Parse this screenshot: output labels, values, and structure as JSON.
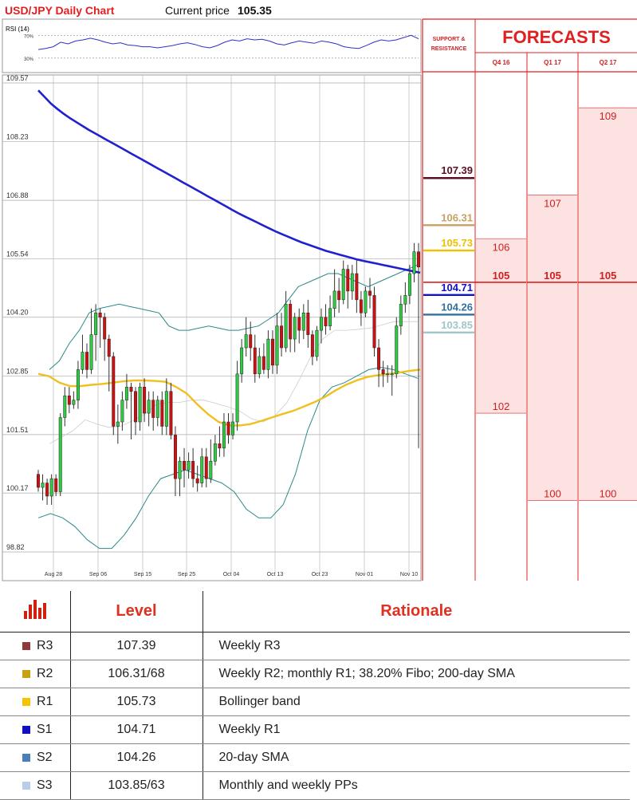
{
  "header": {
    "title": "USD/JPY Daily Chart",
    "price_label": "Current price",
    "price_value": "105.35"
  },
  "rsi_panel": {
    "label": "RSI (14)",
    "upper_label": "70%",
    "lower_label": "30%"
  },
  "support_resistance_title": "SUPPORT & RESISTANCE",
  "forecasts_title": "FORECASTS",
  "colors": {
    "title_red": "#e02020",
    "bull_candle": "#2ecc40",
    "bear_candle": "#d01010",
    "sma200": "#2020d0",
    "sma50": "#f0c020",
    "bollinger": "#2a8a88",
    "sma20": "#cccccc",
    "forecast_fill": "#fde2e2"
  },
  "chart_data": {
    "type": "candlestick",
    "ylim": [
      98.82,
      109.57
    ],
    "y_ticks": [
      "109.57",
      "108.23",
      "106.88",
      "105.54",
      "104.20",
      "102.85",
      "101.51",
      "100.17",
      "98.82"
    ],
    "x_ticks": [
      "Aug 28",
      "Sep 06",
      "Sep 15",
      "Sep 25",
      "Oct 04",
      "Oct 13",
      "Oct 23",
      "Nov 01",
      "Nov 10"
    ],
    "candles": [
      [
        100.6,
        100.3,
        100.7,
        100.2
      ],
      [
        100.3,
        100.4,
        100.6,
        100.0
      ],
      [
        100.4,
        100.1,
        100.5,
        99.9
      ],
      [
        100.1,
        100.5,
        100.6,
        99.9
      ],
      [
        100.5,
        100.2,
        100.6,
        100.1
      ],
      [
        100.2,
        101.9,
        102.0,
        100.1
      ],
      [
        101.9,
        102.4,
        102.6,
        101.7
      ],
      [
        102.4,
        102.2,
        102.6,
        102.0
      ],
      [
        102.2,
        102.3,
        102.5,
        102.1
      ],
      [
        102.3,
        103.0,
        103.2,
        102.1
      ],
      [
        103.0,
        103.4,
        103.8,
        102.9
      ],
      [
        103.4,
        103.0,
        103.6,
        102.8
      ],
      [
        103.0,
        103.8,
        104.4,
        102.9
      ],
      [
        103.8,
        104.3,
        104.5,
        103.2
      ],
      [
        104.3,
        104.2,
        104.4,
        103.5
      ],
      [
        104.2,
        103.7,
        104.3,
        103.2
      ],
      [
        103.7,
        103.3,
        103.8,
        102.5
      ],
      [
        103.3,
        101.7,
        103.4,
        101.5
      ],
      [
        101.7,
        101.8,
        102.2,
        101.3
      ],
      [
        101.8,
        102.3,
        102.5,
        101.6
      ],
      [
        102.3,
        102.6,
        102.9,
        102.1
      ],
      [
        102.6,
        102.5,
        102.7,
        101.4
      ],
      [
        102.5,
        101.8,
        102.6,
        101.5
      ],
      [
        101.8,
        102.6,
        102.7,
        101.6
      ],
      [
        102.6,
        102.0,
        102.8,
        101.8
      ],
      [
        102.0,
        102.3,
        102.5,
        101.7
      ],
      [
        102.3,
        101.9,
        102.5,
        101.6
      ],
      [
        101.9,
        102.3,
        102.4,
        101.7
      ],
      [
        102.3,
        101.7,
        102.5,
        101.5
      ],
      [
        101.7,
        102.5,
        102.8,
        101.5
      ],
      [
        102.5,
        101.5,
        102.7,
        101.4
      ],
      [
        101.5,
        100.5,
        101.7,
        100.1
      ],
      [
        100.5,
        100.9,
        101.0,
        100.1
      ],
      [
        100.9,
        100.7,
        101.2,
        100.3
      ],
      [
        100.7,
        100.9,
        101.1,
        100.5
      ],
      [
        100.9,
        100.5,
        101.2,
        100.3
      ],
      [
        100.5,
        100.4,
        100.8,
        100.2
      ],
      [
        100.4,
        101.0,
        101.2,
        100.3
      ],
      [
        101.0,
        100.5,
        101.2,
        100.3
      ],
      [
        100.5,
        100.9,
        101.4,
        100.4
      ],
      [
        100.9,
        101.3,
        101.5,
        100.8
      ],
      [
        101.3,
        101.2,
        101.7,
        101.0
      ],
      [
        101.2,
        101.8,
        102.0,
        101.0
      ],
      [
        101.8,
        101.5,
        102.0,
        101.3
      ],
      [
        101.5,
        101.8,
        102.0,
        101.4
      ],
      [
        101.8,
        102.9,
        103.2,
        101.6
      ],
      [
        102.9,
        103.5,
        103.7,
        102.7
      ],
      [
        103.5,
        103.8,
        104.2,
        103.3
      ],
      [
        103.8,
        103.5,
        104.1,
        103.2
      ],
      [
        103.5,
        102.9,
        103.8,
        102.7
      ],
      [
        102.9,
        103.3,
        103.5,
        102.8
      ],
      [
        103.3,
        103.0,
        103.6,
        102.9
      ],
      [
        103.0,
        103.7,
        103.9,
        102.8
      ],
      [
        103.7,
        103.1,
        103.9,
        102.9
      ],
      [
        103.1,
        104.0,
        104.3,
        102.9
      ],
      [
        104.0,
        103.5,
        104.3,
        103.3
      ],
      [
        103.5,
        104.5,
        104.8,
        103.4
      ],
      [
        104.5,
        103.7,
        104.6,
        103.4
      ],
      [
        103.7,
        104.2,
        104.3,
        103.4
      ],
      [
        104.2,
        103.9,
        104.4,
        103.6
      ],
      [
        103.9,
        104.3,
        104.5,
        103.7
      ],
      [
        104.3,
        103.8,
        104.6,
        103.5
      ],
      [
        103.8,
        103.3,
        103.9,
        103.1
      ],
      [
        103.3,
        103.9,
        104.0,
        103.2
      ],
      [
        103.9,
        104.2,
        104.4,
        103.6
      ],
      [
        104.2,
        104.0,
        104.5,
        103.8
      ],
      [
        104.0,
        104.4,
        104.7,
        103.9
      ],
      [
        104.4,
        104.8,
        105.3,
        104.2
      ],
      [
        104.8,
        104.6,
        105.1,
        104.3
      ],
      [
        104.6,
        105.3,
        105.5,
        104.5
      ],
      [
        105.3,
        104.8,
        105.4,
        104.4
      ],
      [
        104.8,
        105.2,
        105.4,
        104.6
      ],
      [
        105.2,
        104.6,
        105.5,
        104.3
      ],
      [
        104.6,
        104.3,
        104.8,
        104.0
      ],
      [
        104.3,
        104.8,
        104.9,
        104.2
      ],
      [
        104.8,
        104.7,
        105.1,
        104.4
      ],
      [
        104.7,
        103.5,
        104.9,
        103.3
      ],
      [
        103.5,
        103.0,
        103.7,
        102.6
      ],
      [
        103.0,
        102.9,
        103.2,
        102.6
      ],
      [
        102.9,
        102.9,
        103.1,
        102.7
      ],
      [
        102.9,
        102.9,
        103.1,
        102.4
      ],
      [
        102.9,
        104.0,
        104.2,
        102.8
      ],
      [
        104.0,
        104.5,
        104.7,
        103.8
      ],
      [
        104.5,
        104.7,
        105.0,
        104.3
      ],
      [
        104.7,
        105.2,
        105.4,
        104.5
      ],
      [
        105.2,
        105.7,
        105.9,
        105.0
      ],
      [
        105.7,
        105.35,
        105.9,
        101.2
      ]
    ],
    "sma200": [
      109.4,
      109.25,
      109.1,
      108.98,
      108.87,
      108.77,
      108.68,
      108.59,
      108.5,
      108.42,
      108.34,
      108.26,
      108.18,
      108.1,
      108.02,
      107.94,
      107.86,
      107.78,
      107.7,
      107.62,
      107.54,
      107.46,
      107.38,
      107.3,
      107.22,
      107.14,
      107.06,
      106.98,
      106.9,
      106.82,
      106.74,
      106.66,
      106.58,
      106.51,
      106.44,
      106.37,
      106.3,
      106.23,
      106.16,
      106.1,
      106.04,
      105.98,
      105.92,
      105.87,
      105.82,
      105.77,
      105.72,
      105.68,
      105.64,
      105.6,
      105.56,
      105.52,
      105.49,
      105.46,
      105.43,
      105.4,
      105.37,
      105.34,
      105.31,
      105.28,
      105.25,
      105.22
    ],
    "sma50": [
      102.9,
      102.85,
      102.7,
      102.62,
      102.62,
      102.65,
      102.67,
      102.7,
      102.73,
      102.75,
      102.75,
      102.74,
      102.72,
      102.6,
      102.45,
      102.2,
      101.98,
      101.8,
      101.72,
      101.72,
      101.75,
      101.82,
      101.9,
      101.98,
      102.05,
      102.15,
      102.25,
      102.37,
      102.52,
      102.65,
      102.75,
      102.83,
      102.87,
      102.9,
      102.93,
      102.97,
      103.0
    ],
    "bollinger_upper": [
      103.0,
      103.2,
      103.6,
      103.9,
      104.3,
      104.4,
      104.45,
      104.5,
      104.45,
      104.4,
      104.35,
      104.3,
      104.0,
      103.9,
      103.9,
      103.95,
      104.0,
      103.95,
      103.9,
      103.9,
      103.95,
      104.0,
      104.15,
      104.3,
      104.6,
      104.9,
      105.0,
      105.1,
      105.2,
      105.2,
      105.1,
      105.0,
      104.9,
      105.0,
      105.1,
      105.2,
      105.3,
      105.4
    ],
    "bollinger_lower": [
      99.6,
      99.7,
      99.6,
      99.4,
      99.1,
      98.9,
      98.9,
      99.2,
      99.6,
      100.1,
      100.5,
      100.6,
      100.7,
      100.6,
      100.5,
      100.4,
      100.2,
      99.8,
      99.6,
      99.6,
      99.9,
      100.6,
      101.6,
      102.3,
      102.6,
      102.7,
      102.85,
      103.0,
      103.05,
      103.0,
      102.9,
      102.8
    ],
    "rsi": [
      45,
      47,
      50,
      58,
      55,
      60,
      62,
      65,
      62,
      58,
      55,
      57,
      53,
      52,
      50,
      50,
      48,
      50,
      52,
      55,
      57,
      54,
      50,
      48,
      52,
      58,
      62,
      60,
      64,
      62,
      63,
      60,
      55,
      53,
      57,
      60,
      58,
      56,
      60,
      58,
      55,
      50,
      48,
      47,
      52,
      58,
      62,
      60,
      62,
      66,
      70,
      64
    ],
    "support_resistance": [
      {
        "label": "107.39",
        "value": 107.39,
        "color": "#5a1020"
      },
      {
        "label": "106.31",
        "value": 106.31,
        "color": "#c8a060"
      },
      {
        "label": "105.73",
        "value": 105.73,
        "color": "#f0c000"
      },
      {
        "label": "104.71",
        "value": 104.71,
        "color": "#1010d0"
      },
      {
        "label": "104.26",
        "value": 104.26,
        "color": "#3070a0"
      },
      {
        "label": "103.85",
        "value": 103.85,
        "color": "#a0c8c8"
      }
    ],
    "forecast_columns": [
      {
        "label": "Q4 16",
        "high": 106,
        "base": 105,
        "low": 102,
        "high_label": "106",
        "base_label": "105",
        "low_label": "102"
      },
      {
        "label": "Q1 17",
        "high": 107,
        "base": 105,
        "low": 100,
        "high_label": "107",
        "base_label": "105",
        "low_label": "100"
      },
      {
        "label": "Q2 17",
        "high": 109,
        "base": 105,
        "low": 100,
        "high_label": "109",
        "base_label": "105",
        "low_label": "100"
      }
    ]
  },
  "table": {
    "header_level": "Level",
    "header_rationale": "Rationale",
    "rows": [
      {
        "name": "R3",
        "level": "107.39",
        "rationale": "Weekly R3",
        "color": "#8c3a3a"
      },
      {
        "name": "R2",
        "level": "106.31/68",
        "rationale": "Weekly R2; monthly R1; 38.20% Fibo; 200-day SMA",
        "color": "#c9a010"
      },
      {
        "name": "R1",
        "level": "105.73",
        "rationale": "Bollinger band",
        "color": "#f5c400"
      },
      {
        "name": "S1",
        "level": "104.71",
        "rationale": "Weekly R1",
        "color": "#1010c0"
      },
      {
        "name": "S2",
        "level": "104.26",
        "rationale": "20-day SMA",
        "color": "#4a80b8"
      },
      {
        "name": "S3",
        "level": "103.85/63",
        "rationale": "Monthly and weekly PPs",
        "color": "#b8cce8"
      }
    ]
  }
}
